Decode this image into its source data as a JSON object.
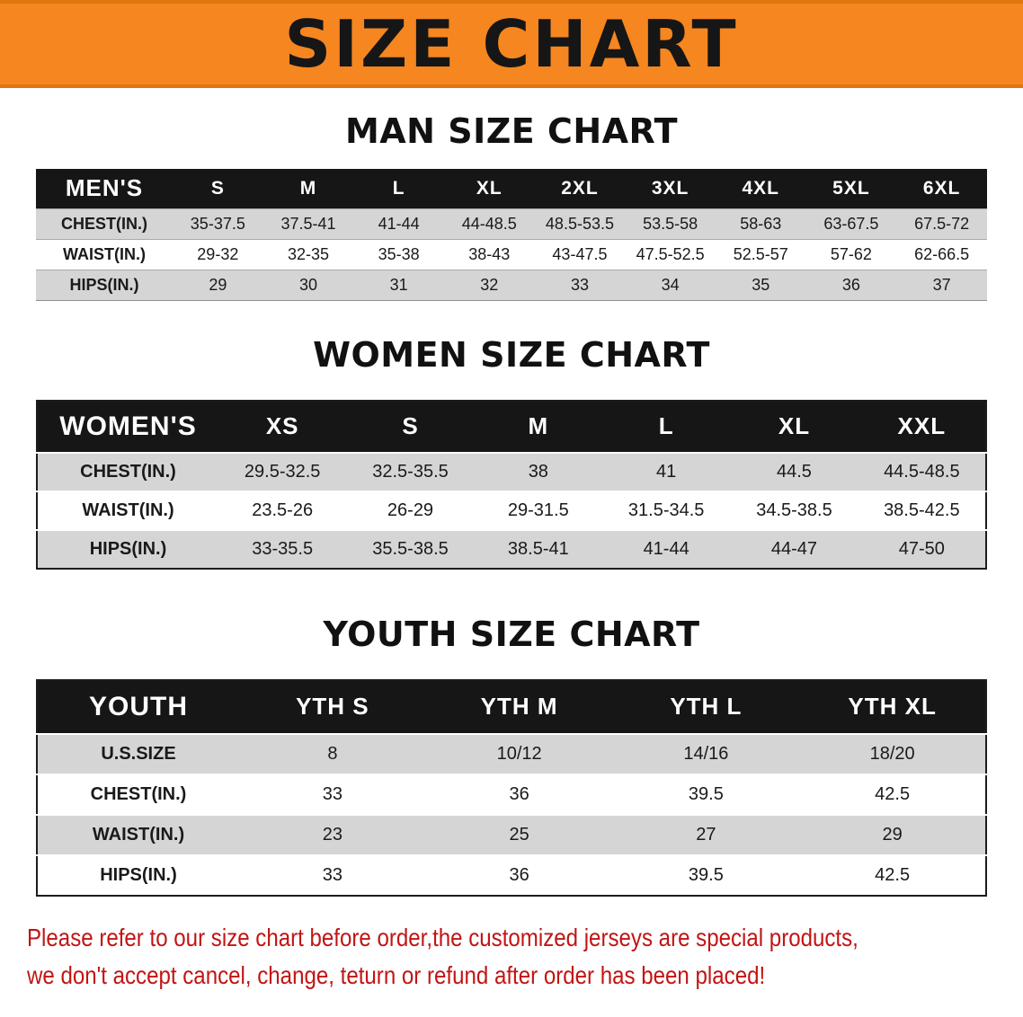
{
  "banner": {
    "title": "SIZE CHART",
    "bg_color": "#f6861f",
    "text_color": "#161616"
  },
  "sections": [
    {
      "id": "mens",
      "heading": "MAN SIZE CHART",
      "table": {
        "header": [
          "MEN'S",
          "S",
          "M",
          "L",
          "XL",
          "2XL",
          "3XL",
          "4XL",
          "5XL",
          "6XL"
        ],
        "rows": [
          {
            "label": "CHEST(IN.)",
            "values": [
              "35-37.5",
              "37.5-41",
              "41-44",
              "44-48.5",
              "48.5-53.5",
              "53.5-58",
              "58-63",
              "63-67.5",
              "67.5-72"
            ]
          },
          {
            "label": "WAIST(IN.)",
            "values": [
              "29-32",
              "32-35",
              "35-38",
              "38-43",
              "43-47.5",
              "47.5-52.5",
              "52.5-57",
              "57-62",
              "62-66.5"
            ]
          },
          {
            "label": "HIPS(IN.)",
            "values": [
              "29",
              "30",
              "31",
              "32",
              "33",
              "34",
              "35",
              "36",
              "37"
            ]
          }
        ]
      }
    },
    {
      "id": "womens",
      "heading": "WOMEN SIZE CHART",
      "table": {
        "header": [
          "WOMEN'S",
          "XS",
          "S",
          "M",
          "L",
          "XL",
          "XXL"
        ],
        "rows": [
          {
            "label": "CHEST(IN.)",
            "values": [
              "29.5-32.5",
              "32.5-35.5",
              "38",
              "41",
              "44.5",
              "44.5-48.5"
            ]
          },
          {
            "label": "WAIST(IN.)",
            "values": [
              "23.5-26",
              "26-29",
              "29-31.5",
              "31.5-34.5",
              "34.5-38.5",
              "38.5-42.5"
            ]
          },
          {
            "label": "HIPS(IN.)",
            "values": [
              "33-35.5",
              "35.5-38.5",
              "38.5-41",
              "41-44",
              "44-47",
              "47-50"
            ]
          }
        ]
      }
    },
    {
      "id": "youth",
      "heading": "YOUTH SIZE CHART",
      "table": {
        "header": [
          "YOUTH",
          "YTH S",
          "YTH M",
          "YTH L",
          "YTH XL"
        ],
        "rows": [
          {
            "label": "U.S.SIZE",
            "values": [
              "8",
              "10/12",
              "14/16",
              "18/20"
            ]
          },
          {
            "label": "CHEST(IN.)",
            "values": [
              "33",
              "36",
              "39.5",
              "42.5"
            ]
          },
          {
            "label": "WAIST(IN.)",
            "values": [
              "23",
              "25",
              "27",
              "29"
            ]
          },
          {
            "label": "HIPS(IN.)",
            "values": [
              "33",
              "36",
              "39.5",
              "42.5"
            ]
          }
        ]
      }
    }
  ],
  "footer": {
    "color": "#c21414",
    "lines": [
      "Please refer to our size chart before order,the customized jerseys are special products,",
      "we don't accept cancel, change, teturn or refund after order has been placed!"
    ]
  }
}
